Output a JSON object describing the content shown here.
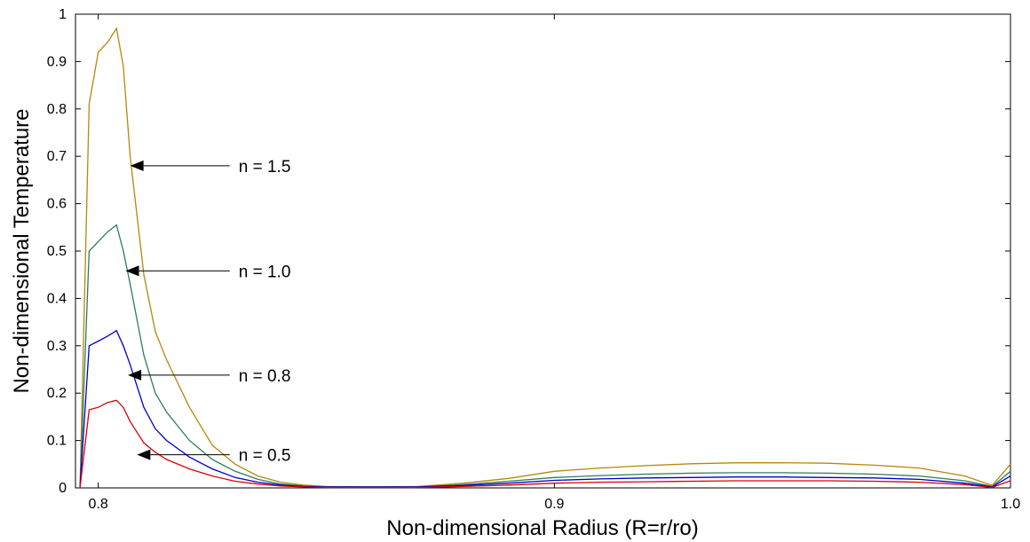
{
  "chart_data": {
    "type": "line",
    "title": "",
    "xlabel": "Non-dimensional Radius (R=r/ro)",
    "ylabel": "Non-dimensional Temperature",
    "xlim": [
      0.795,
      1.0
    ],
    "ylim": [
      0,
      1
    ],
    "xticks": [
      0.8,
      0.9,
      1.0
    ],
    "xtick_labels": [
      "0.8",
      "0.9",
      "1.0"
    ],
    "yticks": [
      0,
      0.1,
      0.2,
      0.3,
      0.4,
      0.5,
      0.6,
      0.7,
      0.8,
      0.9,
      1
    ],
    "ytick_labels": [
      "0",
      "0.1",
      "0.2",
      "0.3",
      "0.4",
      "0.5",
      "0.6",
      "0.7",
      "0.8",
      "0.9",
      "1"
    ],
    "grid": false,
    "legend": "none",
    "series": [
      {
        "color": "#b8860b",
        "x": [
          0.796,
          0.798,
          0.8,
          0.802,
          0.804,
          0.8055,
          0.807,
          0.81,
          0.8125,
          0.815,
          0.82,
          0.825,
          0.83,
          0.835,
          0.84,
          0.845,
          0.85,
          0.86,
          0.87,
          0.88,
          0.89,
          0.9,
          0.91,
          0.92,
          0.93,
          0.94,
          0.95,
          0.96,
          0.97,
          0.98,
          0.99,
          0.996,
          1.0
        ],
        "y": [
          0.0,
          0.81,
          0.92,
          0.94,
          0.97,
          0.89,
          0.7,
          0.45,
          0.33,
          0.27,
          0.17,
          0.09,
          0.05,
          0.025,
          0.012,
          0.006,
          0.003,
          0.002,
          0.003,
          0.01,
          0.02,
          0.035,
          0.042,
          0.047,
          0.051,
          0.053,
          0.053,
          0.052,
          0.048,
          0.042,
          0.025,
          0.005,
          0.05
        ]
      },
      {
        "color": "#2e7d5b",
        "x": [
          0.796,
          0.798,
          0.8,
          0.802,
          0.804,
          0.8055,
          0.807,
          0.81,
          0.8125,
          0.815,
          0.82,
          0.825,
          0.83,
          0.835,
          0.84,
          0.845,
          0.85,
          0.86,
          0.87,
          0.88,
          0.89,
          0.9,
          0.91,
          0.92,
          0.93,
          0.94,
          0.95,
          0.96,
          0.97,
          0.98,
          0.99,
          0.996,
          1.0
        ],
        "y": [
          0.0,
          0.5,
          0.52,
          0.54,
          0.555,
          0.5,
          0.43,
          0.28,
          0.2,
          0.16,
          0.1,
          0.06,
          0.035,
          0.018,
          0.008,
          0.004,
          0.002,
          0.002,
          0.002,
          0.007,
          0.014,
          0.022,
          0.026,
          0.029,
          0.031,
          0.032,
          0.032,
          0.031,
          0.029,
          0.025,
          0.015,
          0.003,
          0.035
        ]
      },
      {
        "color": "#0000cc",
        "x": [
          0.796,
          0.798,
          0.8,
          0.802,
          0.804,
          0.8055,
          0.807,
          0.81,
          0.8125,
          0.815,
          0.82,
          0.825,
          0.83,
          0.835,
          0.84,
          0.845,
          0.85,
          0.86,
          0.87,
          0.88,
          0.89,
          0.9,
          0.91,
          0.92,
          0.93,
          0.94,
          0.95,
          0.96,
          0.97,
          0.98,
          0.99,
          0.996,
          1.0
        ],
        "y": [
          0.0,
          0.3,
          0.31,
          0.32,
          0.332,
          0.3,
          0.26,
          0.17,
          0.125,
          0.1,
          0.065,
          0.04,
          0.022,
          0.012,
          0.006,
          0.003,
          0.002,
          0.002,
          0.002,
          0.005,
          0.01,
          0.016,
          0.019,
          0.021,
          0.022,
          0.023,
          0.023,
          0.022,
          0.021,
          0.018,
          0.01,
          0.002,
          0.025
        ]
      },
      {
        "color": "#dd0000",
        "x": [
          0.796,
          0.798,
          0.8,
          0.802,
          0.804,
          0.8055,
          0.807,
          0.81,
          0.8125,
          0.815,
          0.82,
          0.825,
          0.83,
          0.835,
          0.84,
          0.845,
          0.85,
          0.86,
          0.87,
          0.88,
          0.89,
          0.9,
          0.91,
          0.92,
          0.93,
          0.94,
          0.95,
          0.96,
          0.97,
          0.98,
          0.99,
          0.996,
          1.0
        ],
        "y": [
          0.0,
          0.165,
          0.17,
          0.18,
          0.185,
          0.17,
          0.14,
          0.095,
          0.075,
          0.06,
          0.04,
          0.025,
          0.014,
          0.008,
          0.004,
          0.002,
          0.001,
          0.001,
          0.001,
          0.003,
          0.006,
          0.01,
          0.012,
          0.013,
          0.014,
          0.015,
          0.015,
          0.015,
          0.014,
          0.012,
          0.007,
          0.001,
          0.015
        ]
      }
    ],
    "annotations": [
      {
        "text": "n = 1.5",
        "x": 0.83,
        "y": 0.68,
        "arrow_to": [
          0.807,
          0.68
        ]
      },
      {
        "text": "n = 1.0",
        "x": 0.83,
        "y": 0.458,
        "arrow_to": [
          0.806,
          0.458
        ]
      },
      {
        "text": "n = 0.8",
        "x": 0.83,
        "y": 0.238,
        "arrow_to": [
          0.8065,
          0.238
        ]
      },
      {
        "text": "n = 0.5",
        "x": 0.83,
        "y": 0.07,
        "arrow_to": [
          0.8085,
          0.07
        ]
      }
    ]
  }
}
